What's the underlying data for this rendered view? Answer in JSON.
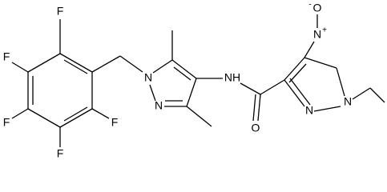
{
  "atoms": [
    {
      "label": "F"
    },
    {
      "label": "F"
    },
    {
      "label": "F"
    },
    {
      "label": "F"
    },
    {
      "label": "F"
    },
    {
      "label": "N"
    },
    {
      "label": "N"
    },
    {
      "label": "NH"
    },
    {
      "label": "O"
    },
    {
      "label": "N"
    },
    {
      "label": "N"
    },
    {
      "label": "N",
      "charge": "+"
    },
    {
      "label": "O",
      "charge": "-"
    }
  ]
}
